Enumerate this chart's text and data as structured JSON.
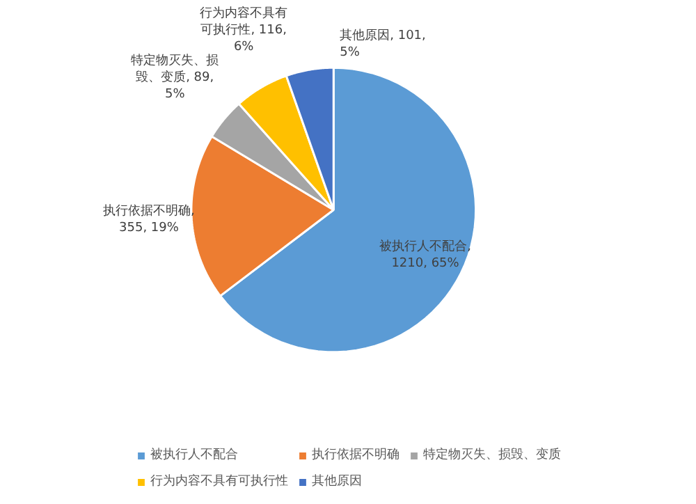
{
  "chart_data": {
    "type": "pie",
    "categories": [
      "被执行人不配合",
      "执行依据不明确",
      "特定物灭失、损毁、变质",
      "行为内容不具有可执行性",
      "其他原因"
    ],
    "values": [
      1210,
      355,
      89,
      116,
      101
    ],
    "colors": [
      "#5b9bd5",
      "#ed7d31",
      "#a5a5a5",
      "#ffc000",
      "#4472c4"
    ],
    "value_labels": [
      "被执行人不配合, 1210, 65%",
      "执行依据不明确, 355, 19%",
      "特定物灭失、损毁、变质, 89, 5%",
      "行为内容不具有可执行性, 116, 6%",
      "其他原因, 101, 5%"
    ],
    "legend": "bottom"
  }
}
